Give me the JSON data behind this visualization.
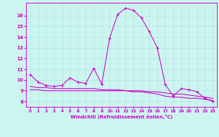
{
  "xlabel": "Windchill (Refroidissement éolien,°C)",
  "background_color": "#cdf5f0",
  "grid_color": "#aae8e0",
  "line_color": "#cc00cc",
  "xlim": [
    -0.5,
    23.5
  ],
  "ylim": [
    7.5,
    17.2
  ],
  "xticks": [
    0,
    1,
    2,
    3,
    4,
    5,
    6,
    7,
    8,
    9,
    10,
    11,
    12,
    13,
    14,
    15,
    16,
    17,
    18,
    19,
    20,
    21,
    22,
    23
  ],
  "yticks": [
    8,
    9,
    10,
    11,
    12,
    13,
    14,
    15,
    16
  ],
  "series1_x": [
    0,
    1,
    2,
    3,
    4,
    5,
    6,
    7,
    8,
    9,
    10,
    11,
    12,
    13,
    14,
    15,
    16,
    17,
    18,
    19,
    20,
    21,
    22,
    23
  ],
  "series1_y": [
    10.5,
    9.8,
    9.5,
    9.4,
    9.5,
    10.2,
    9.8,
    9.7,
    11.1,
    9.6,
    13.9,
    16.1,
    16.7,
    16.5,
    15.8,
    14.5,
    13.0,
    9.6,
    8.5,
    9.2,
    9.1,
    8.9,
    8.3,
    8.0
  ],
  "series2_x": [
    0,
    1,
    2,
    3,
    4,
    5,
    6,
    7,
    8,
    9,
    10,
    11,
    12,
    13,
    14,
    15,
    16,
    17,
    18,
    19,
    20,
    21,
    22,
    23
  ],
  "series2_y": [
    9.4,
    9.3,
    9.3,
    9.2,
    9.2,
    9.2,
    9.2,
    9.2,
    9.2,
    9.1,
    9.1,
    9.1,
    9.0,
    9.0,
    9.0,
    8.9,
    8.9,
    8.8,
    8.7,
    8.7,
    8.6,
    8.5,
    8.4,
    8.3
  ],
  "series3_x": [
    0,
    1,
    2,
    3,
    4,
    5,
    6,
    7,
    8,
    9,
    10,
    11,
    12,
    13,
    14,
    15,
    16,
    17,
    18,
    19,
    20,
    21,
    22,
    23
  ],
  "series3_y": [
    9.1,
    9.1,
    9.0,
    9.0,
    9.0,
    9.0,
    9.0,
    9.0,
    9.0,
    9.0,
    9.0,
    9.0,
    9.0,
    8.9,
    8.9,
    8.8,
    8.7,
    8.5,
    8.4,
    8.4,
    8.3,
    8.3,
    8.2,
    8.1
  ]
}
